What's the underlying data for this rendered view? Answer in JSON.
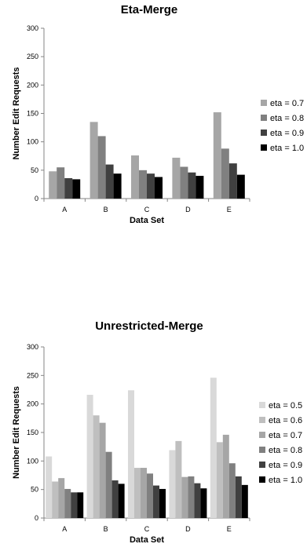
{
  "chart_data": [
    {
      "type": "bar",
      "title": "Eta-Merge",
      "xlabel": "Data Set",
      "ylabel": "Number Edit Requests",
      "ylim": [
        0,
        300
      ],
      "yticks": [
        0,
        50,
        100,
        150,
        200,
        250,
        300
      ],
      "categories": [
        "A",
        "B",
        "C",
        "D",
        "E"
      ],
      "legend_position": "right",
      "grid": false,
      "series": [
        {
          "name": "eta = 0.7",
          "color": "#a6a6a6",
          "values": [
            48,
            135,
            76,
            72,
            152
          ]
        },
        {
          "name": "eta = 0.8",
          "color": "#808080",
          "values": [
            55,
            110,
            50,
            56,
            88
          ]
        },
        {
          "name": "eta = 0.9",
          "color": "#404040",
          "values": [
            36,
            60,
            44,
            46,
            62
          ]
        },
        {
          "name": "eta = 1.0",
          "color": "#000000",
          "values": [
            34,
            44,
            38,
            40,
            42
          ]
        }
      ]
    },
    {
      "type": "bar",
      "title": "Unrestricted-Merge",
      "xlabel": "Data Set",
      "ylabel": "Number Edit Requests",
      "ylim": [
        0,
        300
      ],
      "yticks": [
        0,
        50,
        100,
        150,
        200,
        250,
        300
      ],
      "categories": [
        "A",
        "B",
        "C",
        "D",
        "E"
      ],
      "legend_position": "right",
      "grid": false,
      "series": [
        {
          "name": "eta = 0.5",
          "color": "#d9d9d9",
          "values": [
            108,
            216,
            224,
            119,
            246
          ]
        },
        {
          "name": "eta = 0.6",
          "color": "#bfbfbf",
          "values": [
            64,
            180,
            88,
            135,
            133
          ]
        },
        {
          "name": "eta = 0.7",
          "color": "#a6a6a6",
          "values": [
            70,
            167,
            88,
            72,
            146
          ]
        },
        {
          "name": "eta = 0.8",
          "color": "#808080",
          "values": [
            51,
            116,
            78,
            73,
            96
          ]
        },
        {
          "name": "eta = 0.9",
          "color": "#404040",
          "values": [
            45,
            66,
            57,
            61,
            73
          ]
        },
        {
          "name": "eta = 1.0",
          "color": "#000000",
          "values": [
            45,
            60,
            51,
            52,
            58
          ]
        }
      ]
    }
  ]
}
